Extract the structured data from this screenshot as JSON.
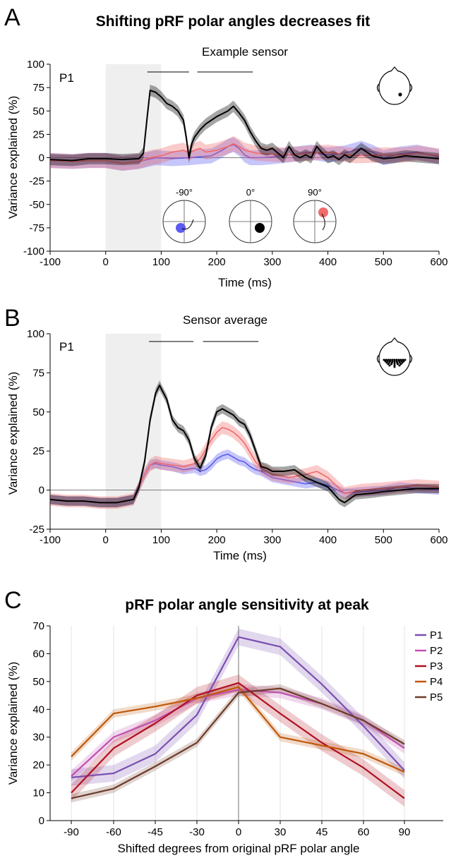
{
  "panels": {
    "a": {
      "letter": "A",
      "title": "Shifting pRF polar angles decreases fit",
      "subtitle": "Example sensor",
      "participant": "P1",
      "ylabel": "Variance explained (%)",
      "xlabel": "Time (ms)",
      "angle_labels": [
        "-90°",
        "0°",
        "90°"
      ]
    },
    "b": {
      "letter": "B",
      "subtitle": "Sensor average",
      "participant": "P1",
      "ylabel": "Variance explained (%)",
      "xlabel": "Time (ms)"
    },
    "c": {
      "letter": "C",
      "title": "pRF polar angle sensitivity at peak",
      "ylabel": "Variance explained (%)",
      "xlabel": "Shifted degrees from original pRF polar angle"
    }
  },
  "colors": {
    "black_series": "#000000",
    "blue_series": "#5b5bf0",
    "red_series": "#f26a6a",
    "stim_shade": "#efefef",
    "P1": "#7b4fb0",
    "P2": "#c050b0",
    "P3": "#b01020",
    "P4": "#c0580a",
    "P5": "#6e3b28"
  },
  "chart_data": [
    {
      "panel": "A",
      "type": "line",
      "title": "Example sensor",
      "xlabel": "Time (ms)",
      "ylabel": "Variance explained (%)",
      "xlim": [
        -100,
        600
      ],
      "ylim": [
        -100,
        100
      ],
      "xticks": [
        -100,
        0,
        100,
        200,
        300,
        400,
        500,
        600
      ],
      "yticks": [
        -100,
        -75,
        -50,
        -25,
        0,
        25,
        50,
        75,
        100
      ],
      "stimulus_window": [
        0,
        100
      ],
      "significance_bars": [
        [
          75,
          150
        ],
        [
          165,
          265
        ]
      ],
      "series": [
        {
          "name": "0°",
          "color": "black",
          "x": [
            -100,
            -60,
            -30,
            0,
            30,
            60,
            68,
            75,
            80,
            90,
            100,
            110,
            120,
            130,
            140,
            145,
            150,
            155,
            160,
            170,
            180,
            190,
            200,
            210,
            220,
            230,
            240,
            250,
            260,
            270,
            280,
            290,
            300,
            310,
            320,
            330,
            340,
            350,
            360,
            370,
            380,
            390,
            400,
            410,
            420,
            430,
            440,
            460,
            480,
            500,
            520,
            540,
            560,
            580,
            600
          ],
          "y": [
            -2,
            -3,
            -1,
            -1,
            -2,
            -1,
            5,
            45,
            72,
            70,
            65,
            58,
            55,
            50,
            40,
            22,
            0,
            15,
            22,
            30,
            36,
            40,
            44,
            47,
            50,
            55,
            48,
            40,
            28,
            18,
            10,
            8,
            10,
            5,
            0,
            12,
            3,
            0,
            3,
            0,
            12,
            5,
            0,
            2,
            -2,
            3,
            0,
            10,
            2,
            -1,
            0,
            2,
            1,
            0,
            -1
          ],
          "band": 6
        },
        {
          "name": "-90°",
          "color": "blue",
          "x": [
            -100,
            -60,
            -30,
            0,
            30,
            60,
            90,
            120,
            150,
            170,
            190,
            210,
            220,
            230,
            240,
            250,
            260,
            280,
            300,
            330,
            370,
            400,
            430,
            460,
            480,
            500,
            530,
            560,
            600
          ],
          "y": [
            -3,
            -4,
            -3,
            -3,
            -6,
            -4,
            0,
            -1,
            0,
            1,
            2,
            8,
            12,
            14,
            10,
            3,
            0,
            0,
            1,
            3,
            6,
            3,
            5,
            10,
            6,
            0,
            4,
            6,
            1
          ],
          "band": 8
        },
        {
          "name": "90°",
          "color": "red",
          "x": [
            -100,
            -60,
            -30,
            0,
            30,
            60,
            80,
            100,
            120,
            140,
            150,
            160,
            170,
            180,
            200,
            220,
            230,
            240,
            250,
            270,
            290,
            320,
            370,
            400,
            450,
            500,
            540,
            560,
            600
          ],
          "y": [
            -3,
            -4,
            -3,
            -3,
            -6,
            -4,
            0,
            2,
            6,
            8,
            5,
            8,
            10,
            6,
            8,
            12,
            15,
            12,
            8,
            5,
            4,
            3,
            5,
            6,
            2,
            3,
            3,
            5,
            2
          ],
          "band": 8
        }
      ]
    },
    {
      "panel": "B",
      "type": "line",
      "title": "Sensor average",
      "xlabel": "Time (ms)",
      "ylabel": "Variance explained (%)",
      "xlim": [
        -100,
        600
      ],
      "ylim": [
        -25,
        100
      ],
      "xticks": [
        -100,
        0,
        100,
        200,
        300,
        400,
        500,
        600
      ],
      "yticks": [
        -25,
        0,
        25,
        50,
        75,
        100
      ],
      "stimulus_window": [
        0,
        100
      ],
      "significance_bars": [
        [
          78,
          158
        ],
        [
          175,
          275
        ]
      ],
      "series": [
        {
          "name": "0°",
          "color": "black",
          "x": [
            -100,
            -70,
            -40,
            -10,
            20,
            50,
            60,
            70,
            80,
            90,
            97,
            110,
            120,
            130,
            140,
            150,
            160,
            170,
            180,
            190,
            200,
            210,
            220,
            230,
            240,
            250,
            260,
            270,
            280,
            290,
            300,
            320,
            340,
            360,
            380,
            400,
            420,
            430,
            450,
            480,
            500,
            530,
            560,
            600
          ],
          "y": [
            -6,
            -7,
            -7,
            -8,
            -8,
            -6,
            2,
            18,
            45,
            62,
            67,
            58,
            45,
            40,
            38,
            32,
            20,
            14,
            22,
            40,
            50,
            52,
            50,
            48,
            44,
            42,
            35,
            25,
            15,
            14,
            12,
            12,
            13,
            8,
            5,
            2,
            -6,
            -8,
            -3,
            -2,
            -1,
            0,
            1,
            1
          ],
          "band": 3
        },
        {
          "name": "-90°",
          "color": "blue",
          "x": [
            -100,
            -70,
            -40,
            -10,
            20,
            50,
            60,
            70,
            80,
            90,
            100,
            120,
            140,
            160,
            170,
            180,
            190,
            200,
            210,
            220,
            230,
            240,
            250,
            260,
            270,
            280,
            300,
            330,
            360,
            380,
            400,
            430,
            460,
            500,
            530,
            560,
            600
          ],
          "y": [
            -6,
            -7,
            -7,
            -8,
            -8,
            -6,
            2,
            10,
            16,
            17,
            16,
            15,
            13,
            14,
            12,
            13,
            16,
            20,
            22,
            23,
            21,
            19,
            18,
            15,
            13,
            12,
            8,
            6,
            4,
            5,
            3,
            -2,
            -1,
            0,
            2,
            1,
            0
          ],
          "band": 3
        },
        {
          "name": "90°",
          "color": "red",
          "x": [
            -100,
            -70,
            -40,
            -10,
            20,
            50,
            60,
            70,
            80,
            90,
            100,
            120,
            140,
            160,
            170,
            180,
            190,
            200,
            210,
            220,
            230,
            240,
            250,
            260,
            270,
            280,
            300,
            330,
            360,
            380,
            400,
            430,
            460,
            500,
            530,
            560,
            600
          ],
          "y": [
            -6,
            -7,
            -7,
            -8,
            -8,
            -6,
            2,
            10,
            16,
            18,
            17,
            16,
            15,
            17,
            20,
            26,
            32,
            37,
            40,
            39,
            37,
            34,
            30,
            24,
            18,
            14,
            10,
            8,
            10,
            12,
            8,
            -2,
            0,
            1,
            2,
            3,
            2
          ],
          "band": 4
        }
      ]
    },
    {
      "panel": "C",
      "type": "line",
      "title": "pRF polar angle sensitivity at peak",
      "xlabel": "Shifted degrees from original pRF polar angle",
      "ylabel": "Variance explained (%)",
      "categories": [
        "-90",
        "-60",
        "-45",
        "-30",
        "0",
        "30",
        "45",
        "60",
        "90"
      ],
      "ylim": [
        0,
        70
      ],
      "yticks": [
        0,
        10,
        20,
        30,
        40,
        50,
        60,
        70
      ],
      "legend_position": "top-right",
      "series": [
        {
          "name": "P1",
          "values": [
            15.5,
            17,
            24,
            38,
            66,
            62.5,
            49,
            34,
            18
          ],
          "band": 3
        },
        {
          "name": "P2",
          "values": [
            16,
            30,
            36,
            44,
            47,
            46,
            42,
            36,
            26
          ],
          "band": 2
        },
        {
          "name": "P3",
          "values": [
            10,
            26,
            35,
            45,
            49.5,
            38.5,
            28,
            19,
            8
          ],
          "band": 3
        },
        {
          "name": "P4",
          "values": [
            23,
            38.5,
            41,
            44,
            48,
            30,
            27,
            24,
            17.5
          ],
          "band": 1.5
        },
        {
          "name": "P5",
          "values": [
            8,
            11.5,
            19.5,
            28,
            46,
            47.5,
            42,
            36,
            27.5
          ],
          "band": 1.5
        }
      ]
    }
  ]
}
